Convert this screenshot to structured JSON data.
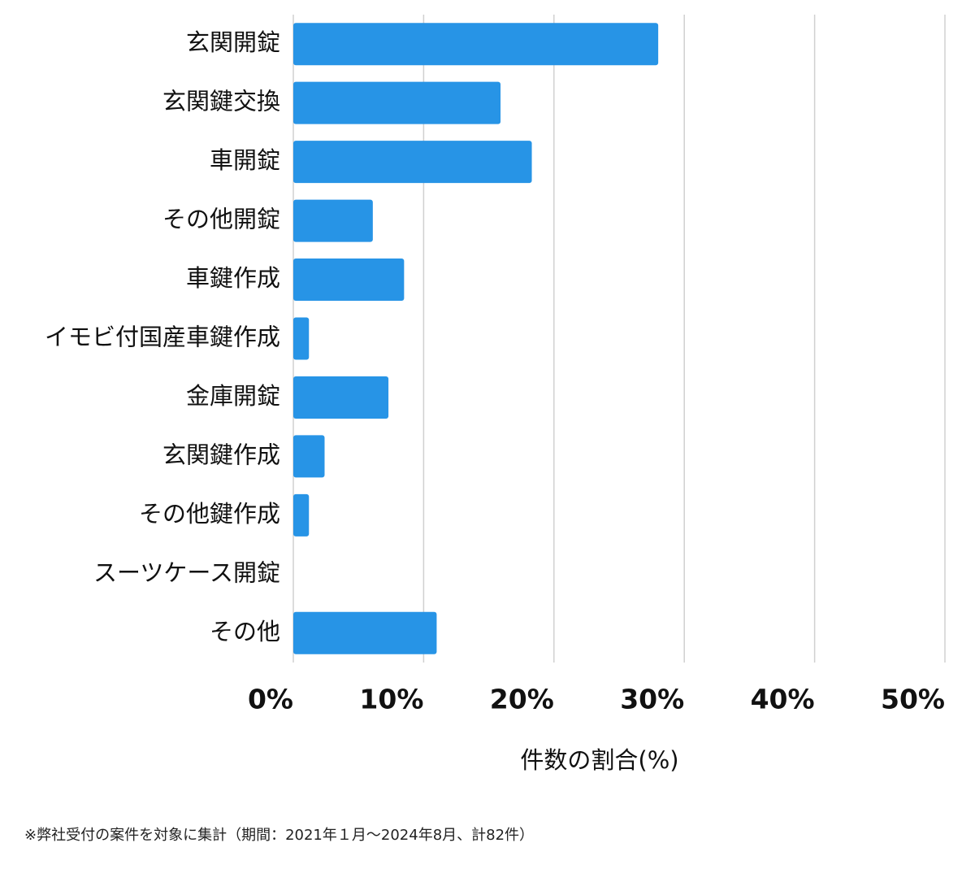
{
  "chart_data": {
    "type": "barh",
    "categories": [
      "玄関開錠",
      "玄関鍵交換",
      "車開錠",
      "その他開錠",
      "車鍵作成",
      "イモビ付国産車鍵作成",
      "金庫開錠",
      "玄関鍵作成",
      "その他鍵作成",
      "スーツケース開錠",
      "その他"
    ],
    "values": [
      28.0,
      15.9,
      18.3,
      6.1,
      8.5,
      1.2,
      7.3,
      2.4,
      1.2,
      0,
      11.0
    ],
    "color": "#2794e6",
    "xlim": [
      0,
      50
    ],
    "xticks": [
      {
        "value": 0,
        "label": "0%"
      },
      {
        "value": 10,
        "label": "10%"
      },
      {
        "value": 20,
        "label": "20%"
      },
      {
        "value": 30,
        "label": "30%"
      },
      {
        "value": 40,
        "label": "40%"
      },
      {
        "value": 50,
        "label": "50%"
      }
    ],
    "xlabel": "件数の割合(%)",
    "grid": true
  },
  "footnote": "※弊社受付の案件を対象に集計（期間：2021年１月〜2024年8月、計82件）"
}
